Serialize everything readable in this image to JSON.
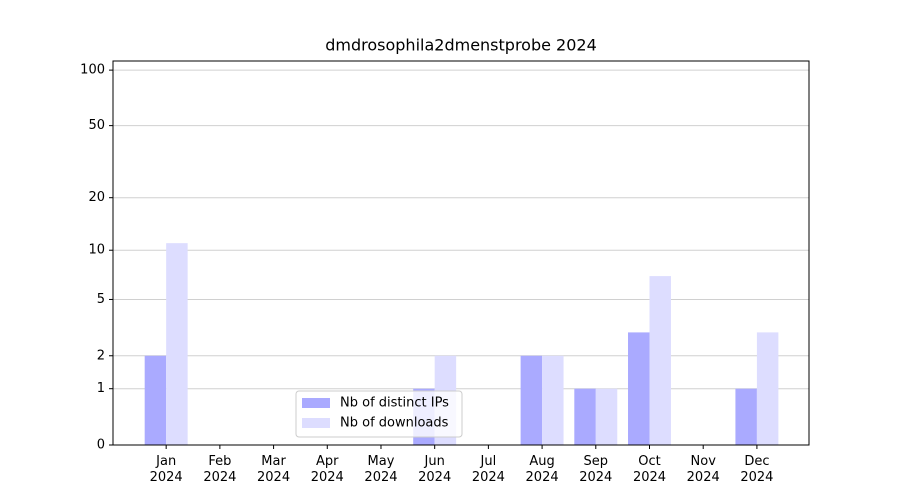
{
  "chart_data": {
    "type": "bar",
    "title": "dmdrosophila2dmenstprobe 2024",
    "categories": [
      "Jan\n2024",
      "Feb\n2024",
      "Mar\n2024",
      "Apr\n2024",
      "May\n2024",
      "Jun\n2024",
      "Jul\n2024",
      "Aug\n2024",
      "Sep\n2024",
      "Oct\n2024",
      "Nov\n2024",
      "Dec\n2024"
    ],
    "series": [
      {
        "name": "Nb of distinct IPs",
        "color": "#aaaaff",
        "values": [
          2,
          0,
          0,
          0,
          0,
          1,
          0,
          2,
          1,
          3,
          0,
          1
        ]
      },
      {
        "name": "Nb of downloads",
        "color": "#ddddff",
        "values": [
          11,
          0,
          0,
          0,
          0,
          2,
          0,
          2,
          1,
          7,
          0,
          3
        ]
      }
    ],
    "yscale": "log1p",
    "ylim": [
      0,
      112
    ],
    "yticks": [
      0,
      1,
      2,
      5,
      10,
      20,
      50,
      100
    ],
    "grid": true,
    "legend": "lower center"
  }
}
